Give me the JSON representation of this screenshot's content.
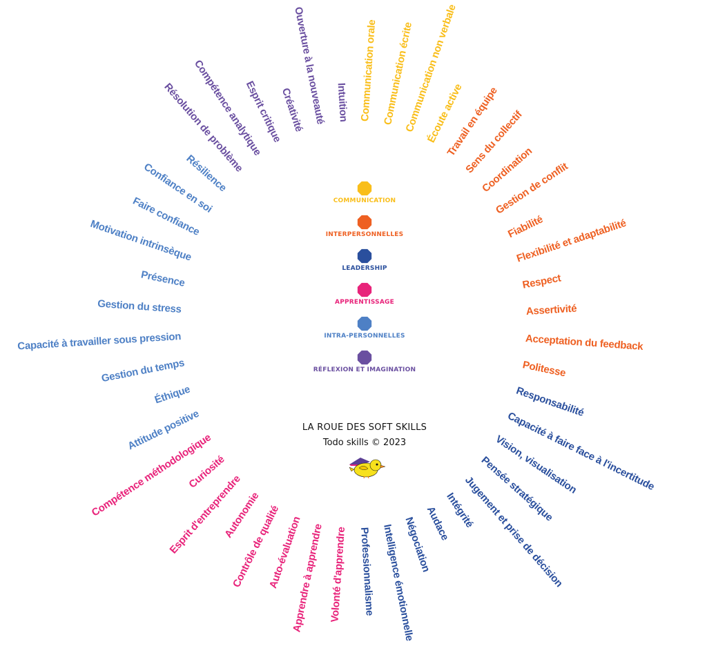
{
  "categories": [
    {
      "key": "communication",
      "label": "COMMUNICATION",
      "color": "#F9BE1A"
    },
    {
      "key": "interpersonnelles",
      "label": "INTERPERSONNELLES",
      "color": "#EE6022"
    },
    {
      "key": "leadership",
      "label": "LEADERSHIP",
      "color": "#2A4F9D"
    },
    {
      "key": "apprentissage",
      "label": "APPRENTISSAGE",
      "color": "#E8237A"
    },
    {
      "key": "intra",
      "label": "INTRA-PERSONNELLES",
      "color": "#4E80C5"
    },
    {
      "key": "reflexion",
      "label": "RÉFLEXION ET IMAGINATION",
      "color": "#6A4FA0"
    }
  ],
  "skills": [
    {
      "label": "Communication orale",
      "category": "communication"
    },
    {
      "label": "Communication écrite",
      "category": "communication"
    },
    {
      "label": "Communication non verbale",
      "category": "communication"
    },
    {
      "label": "Écoute active",
      "category": "communication"
    },
    {
      "label": "Travail en équipe",
      "category": "interpersonnelles"
    },
    {
      "label": "Sens du collectif",
      "category": "interpersonnelles"
    },
    {
      "label": "Coordination",
      "category": "interpersonnelles"
    },
    {
      "label": "Gestion de conflit",
      "category": "interpersonnelles"
    },
    {
      "label": "Fiabilité",
      "category": "interpersonnelles"
    },
    {
      "label": "Flexibilité et adaptabilité",
      "category": "interpersonnelles"
    },
    {
      "label": "Respect",
      "category": "interpersonnelles"
    },
    {
      "label": "Assertivité",
      "category": "interpersonnelles"
    },
    {
      "label": "Acceptation du feedback",
      "category": "interpersonnelles"
    },
    {
      "label": "Politesse",
      "category": "interpersonnelles"
    },
    {
      "label": "Responsabilité",
      "category": "leadership"
    },
    {
      "label": "Capacité à faire face à l'incertitude",
      "category": "leadership"
    },
    {
      "label": "Vision, visualisation",
      "category": "leadership"
    },
    {
      "label": "Pensée stratégique",
      "category": "leadership"
    },
    {
      "label": "Jugement et prise de décision",
      "category": "leadership"
    },
    {
      "label": "Intégrité",
      "category": "leadership"
    },
    {
      "label": "Audace",
      "category": "leadership"
    },
    {
      "label": "Négociation",
      "category": "leadership"
    },
    {
      "label": "Intelligence émotionnelle",
      "category": "leadership"
    },
    {
      "label": "Professionnalisme",
      "category": "leadership"
    },
    {
      "label": "Volonté d'apprendre",
      "category": "apprentissage"
    },
    {
      "label": "Apprendre à apprendre",
      "category": "apprentissage"
    },
    {
      "label": "Auto-évaluation",
      "category": "apprentissage"
    },
    {
      "label": "Contrôle de qualité",
      "category": "apprentissage"
    },
    {
      "label": "Autonomie",
      "category": "apprentissage"
    },
    {
      "label": "Esprit d'entreprendre",
      "category": "apprentissage"
    },
    {
      "label": "Curiosité",
      "category": "apprentissage"
    },
    {
      "label": "Compétence méthodologique",
      "category": "apprentissage"
    },
    {
      "label": "Attitude positive",
      "category": "intra"
    },
    {
      "label": "Éthique",
      "category": "intra"
    },
    {
      "label": "Gestion du temps",
      "category": "intra"
    },
    {
      "label": "Capacité à travailler sous pression",
      "category": "intra"
    },
    {
      "label": "Gestion du stress",
      "category": "intra"
    },
    {
      "label": "Présence",
      "category": "intra"
    },
    {
      "label": "Motivation intrinsèque",
      "category": "intra"
    },
    {
      "label": "Faire confiance",
      "category": "intra"
    },
    {
      "label": "Confiance en soi",
      "category": "intra"
    },
    {
      "label": "Résilience",
      "category": "intra"
    },
    {
      "label": "Résolution de problème",
      "category": "reflexion"
    },
    {
      "label": "Compétence analytique",
      "category": "reflexion"
    },
    {
      "label": "Esprit critique",
      "category": "reflexion"
    },
    {
      "label": "Créativité",
      "category": "reflexion"
    },
    {
      "label": "Ouverture à la nouveauté",
      "category": "reflexion"
    },
    {
      "label": "Intuition",
      "category": "reflexion"
    }
  ],
  "title": "LA ROUE DES SOFT SKILLS",
  "copyright": "Todo skills © 2023",
  "mascot_icon": "bird-wizard-hat-icon"
}
